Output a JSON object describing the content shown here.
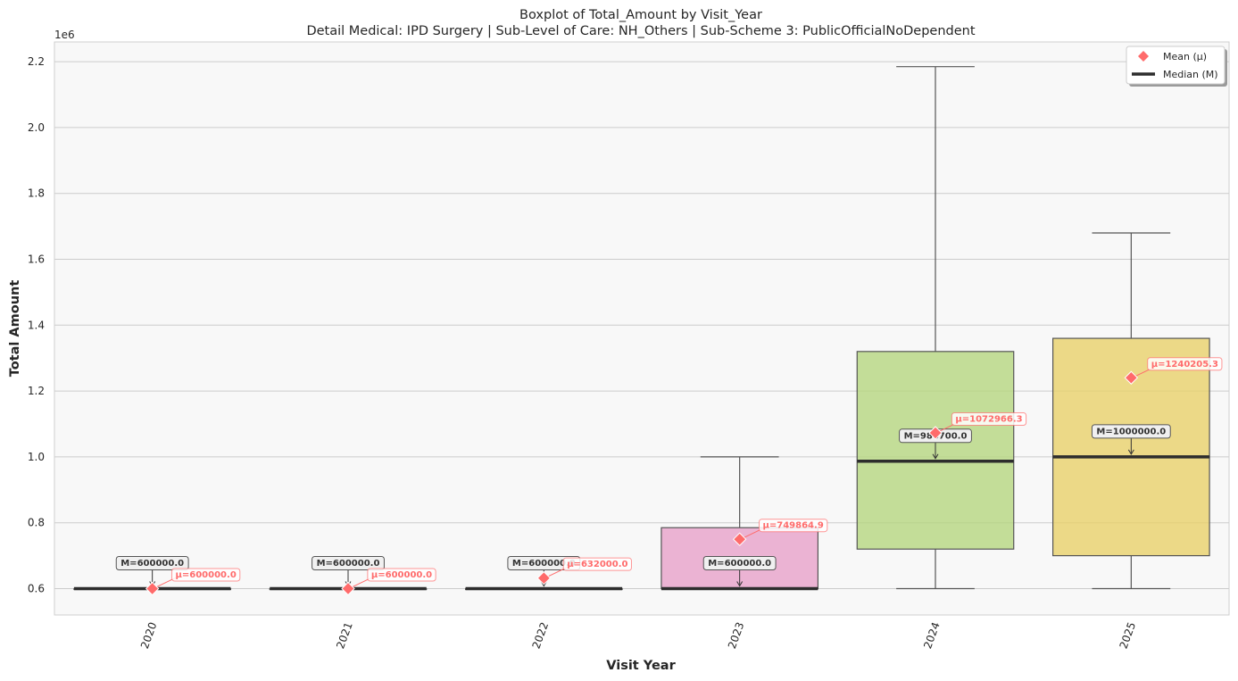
{
  "chart_data": {
    "type": "box",
    "title": "Boxplot of Total_Amount by Visit_Year",
    "subtitle": "Detail Medical: IPD Surgery | Sub-Level of Care: NH_Others | Sub-Scheme 3: PublicOfficialNoDependent",
    "xlabel": "Visit Year",
    "ylabel": "Total Amount",
    "y_scale_label": "1e6",
    "ylim": [
      520000,
      2260000
    ],
    "yticks": [
      0.6,
      0.8,
      1.0,
      1.2,
      1.4,
      1.6,
      1.8,
      2.0,
      2.2
    ],
    "ytick_labels": [
      "0.6",
      "0.8",
      "1.0",
      "1.2",
      "1.4",
      "1.6",
      "1.8",
      "2.0",
      "2.2"
    ],
    "grid": true,
    "legend": {
      "placement": "top-right",
      "entries": [
        {
          "label": "Mean (μ)",
          "marker": "diamond",
          "color": "#ff6b6b"
        },
        {
          "label": "Median (M)",
          "marker": "line",
          "color": "#2d2d2d"
        }
      ]
    },
    "categories": [
      "2020",
      "2021",
      "2022",
      "2023",
      "2024",
      "2025"
    ],
    "boxes": [
      {
        "category": "2020",
        "whisker_low": 600000,
        "q1": 600000,
        "median": 600000,
        "q3": 600000,
        "whisker_high": 600000,
        "mean": 600000,
        "color": "#fc8d62",
        "median_label": "M=600000.0",
        "mean_label": "μ=600000.0"
      },
      {
        "category": "2021",
        "whisker_low": 600000,
        "q1": 600000,
        "median": 600000,
        "q3": 600000,
        "whisker_high": 600000,
        "mean": 600000,
        "color": "#8da0cb",
        "median_label": "M=600000.0",
        "mean_label": "μ=600000.0"
      },
      {
        "category": "2022",
        "whisker_low": 600000,
        "q1": 600000,
        "median": 600000,
        "q3": 600000,
        "whisker_high": 600000,
        "mean": 632000,
        "color": "#66c2a5",
        "median_label": "M=600000.0",
        "mean_label": "μ=632000.0"
      },
      {
        "category": "2023",
        "whisker_low": 600000,
        "q1": 600000,
        "median": 600000,
        "q3": 785000,
        "whisker_high": 1000000,
        "mean": 749864.9,
        "color": "#e7a1c9",
        "median_label": "M=600000.0",
        "mean_label": "μ=749864.9"
      },
      {
        "category": "2024",
        "whisker_low": 600000,
        "q1": 720000,
        "median": 986700,
        "q3": 1320000,
        "whisker_high": 2185000,
        "mean": 1072966.3,
        "color": "#b5d67f",
        "median_label": "M=986700.0",
        "mean_label": "μ=1072966.3"
      },
      {
        "category": "2025",
        "whisker_low": 600000,
        "q1": 700000,
        "median": 1000000,
        "q3": 1360000,
        "whisker_high": 1680000,
        "mean": 1240205.3,
        "color": "#e8d16a",
        "median_label": "M=1000000.0",
        "mean_label": "μ=1240205.3"
      }
    ],
    "colors": {
      "mean_marker": "#ff6b6b",
      "median_line": "#2d2d2d",
      "plot_background": "#f8f8f8",
      "grid": "#cccccc"
    }
  }
}
